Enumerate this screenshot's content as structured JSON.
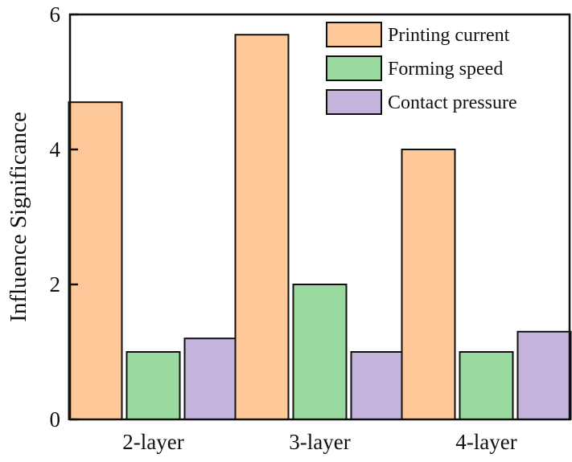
{
  "chart_data": {
    "type": "bar",
    "categories": [
      "2-layer",
      "3-layer",
      "4-layer"
    ],
    "series": [
      {
        "name": "Printing current",
        "values": [
          4.7,
          5.7,
          4.0
        ],
        "color": "#FFC898"
      },
      {
        "name": "Forming speed",
        "values": [
          1.0,
          2.0,
          1.0
        ],
        "color": "#9BDA9F"
      },
      {
        "name": "Contact pressure",
        "values": [
          1.2,
          1.0,
          1.3
        ],
        "color": "#C4B4DC"
      }
    ],
    "xlabel": "",
    "ylabel": "Influence Significance",
    "ylim": [
      0,
      6
    ],
    "yticks": [
      0,
      2,
      4,
      6
    ],
    "grid": false,
    "legend_position": "top-right"
  }
}
